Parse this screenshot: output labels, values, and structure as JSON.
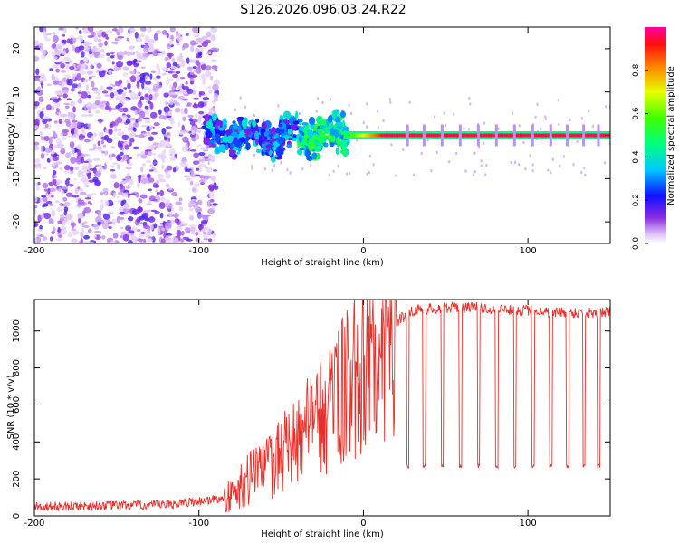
{
  "title": "S126.2026.096.03.24.R22",
  "colors": {
    "snr_line": "#e8302a",
    "axis": "#000000",
    "background": "#ffffff"
  },
  "chart_data": [
    {
      "type": "heatmap",
      "name": "spectrogram",
      "xlabel": "Height of straight line (km)",
      "ylabel": "Frequency (Hz)",
      "xlim": [
        -200,
        150
      ],
      "ylim": [
        -25,
        25
      ],
      "xticks": [
        -200,
        -100,
        0,
        100
      ],
      "yticks": [
        -20,
        -10,
        0,
        10,
        20
      ],
      "colorbar": {
        "label": "Normalized spectral amplitude",
        "range": [
          0,
          1
        ],
        "ticks": [
          0.0,
          0.2,
          0.4,
          0.6,
          0.8
        ],
        "tick_labels": [
          "0.0",
          "0.2",
          "0.4",
          "0.6",
          "0.8"
        ]
      },
      "regions": [
        {
          "x_range": [
            -200,
            -97
          ],
          "description_level": 0.15,
          "freq_spread": 25
        },
        {
          "x_range": [
            -97,
            -10
          ],
          "description_level": 0.3,
          "freq_spread": 5
        },
        {
          "x_range": [
            -10,
            150
          ],
          "description_level": 0.95,
          "freq_spread": 1
        }
      ]
    },
    {
      "type": "line",
      "name": "snr",
      "xlabel": "Height of straight line (km)",
      "ylabel": "SNR (10 * v/v)",
      "xlim": [
        -200,
        150
      ],
      "ylim": [
        0,
        1170
      ],
      "xticks": [
        -200,
        -100,
        0,
        100
      ],
      "yticks": [
        0,
        200,
        400,
        600,
        800,
        1000
      ],
      "series": [
        {
          "name": "SNR",
          "anchors_x": [
            -200,
            -120,
            -100,
            -80,
            -70,
            -60,
            -50,
            -40,
            -30,
            -20,
            -10,
            -5,
            0,
            5,
            10,
            15,
            20,
            25,
            30,
            40,
            60,
            80,
            100,
            120,
            150
          ],
          "anchors_y": [
            50,
            60,
            80,
            100,
            200,
            250,
            330,
            420,
            500,
            600,
            700,
            740,
            780,
            800,
            850,
            950,
            1050,
            1080,
            1110,
            1120,
            1130,
            1120,
            1110,
            1100,
            1100
          ],
          "dropouts_x": [
            27,
            37,
            48,
            59,
            70,
            81,
            92,
            103,
            114,
            124,
            134,
            143
          ],
          "dropout_level": 270
        }
      ]
    }
  ]
}
